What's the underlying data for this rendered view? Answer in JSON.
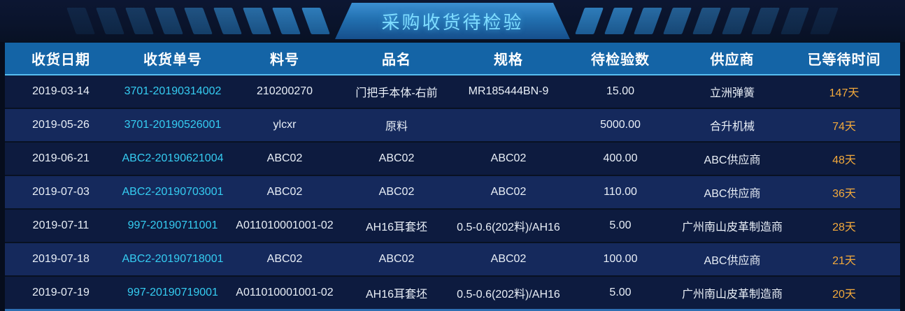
{
  "title": "采购收货待检验",
  "table": {
    "columns": [
      {
        "label": "收货日期",
        "key": "date",
        "accent": ""
      },
      {
        "label": "收货单号",
        "key": "order_no",
        "accent": "cyan"
      },
      {
        "label": "料号",
        "key": "material_no",
        "accent": ""
      },
      {
        "label": "品名",
        "key": "product_name",
        "accent": ""
      },
      {
        "label": "规格",
        "key": "spec",
        "accent": ""
      },
      {
        "label": "待检验数",
        "key": "qty",
        "accent": ""
      },
      {
        "label": "供应商",
        "key": "supplier",
        "accent": ""
      },
      {
        "label": "已等待时间",
        "key": "waited",
        "accent": "orange"
      }
    ],
    "rows": [
      {
        "date": "2019-03-14",
        "order_no": "3701-20190314002",
        "material_no": "210200270",
        "product_name": "门把手本体-右前",
        "spec": "MR185444BN-9",
        "qty": "15.00",
        "supplier": "立洲弹簧",
        "waited": "147天"
      },
      {
        "date": "2019-05-26",
        "order_no": "3701-20190526001",
        "material_no": "ylcxr",
        "product_name": "原料",
        "spec": "",
        "qty": "5000.00",
        "supplier": "合升机械",
        "waited": "74天"
      },
      {
        "date": "2019-06-21",
        "order_no": "ABC2-20190621004",
        "material_no": "ABC02",
        "product_name": "ABC02",
        "spec": "ABC02",
        "qty": "400.00",
        "supplier": "ABC供应商",
        "waited": "48天"
      },
      {
        "date": "2019-07-03",
        "order_no": "ABC2-20190703001",
        "material_no": "ABC02",
        "product_name": "ABC02",
        "spec": "ABC02",
        "qty": "110.00",
        "supplier": "ABC供应商",
        "waited": "36天"
      },
      {
        "date": "2019-07-11",
        "order_no": "997-20190711001",
        "material_no": "A011010001001-02",
        "product_name": "AH16耳套坯",
        "spec": "0.5-0.6(202料)/AH16",
        "qty": "5.00",
        "supplier": "广州南山皮革制造商",
        "waited": "28天"
      },
      {
        "date": "2019-07-18",
        "order_no": "ABC2-20190718001",
        "material_no": "ABC02",
        "product_name": "ABC02",
        "spec": "ABC02",
        "qty": "100.00",
        "supplier": "ABC供应商",
        "waited": "21天"
      },
      {
        "date": "2019-07-19",
        "order_no": "997-20190719001",
        "material_no": "A011010001001-02",
        "product_name": "AH16耳套坯",
        "spec": "0.5-0.6(202料)/AH16",
        "qty": "5.00",
        "supplier": "广州南山皮革制造商",
        "waited": "20天"
      }
    ]
  },
  "colors": {
    "background": "#060d1d",
    "header_bg": "#1464a6",
    "header_underline": "#57bdf0",
    "row_dark": "#0d1b3f",
    "row_light": "#15295c",
    "accent_cyan": "#35cdf2",
    "accent_orange": "#f2a93b",
    "title_text": "#7edcff",
    "title_box": "#2270b0",
    "bottom_line": "#2e6fb2"
  }
}
